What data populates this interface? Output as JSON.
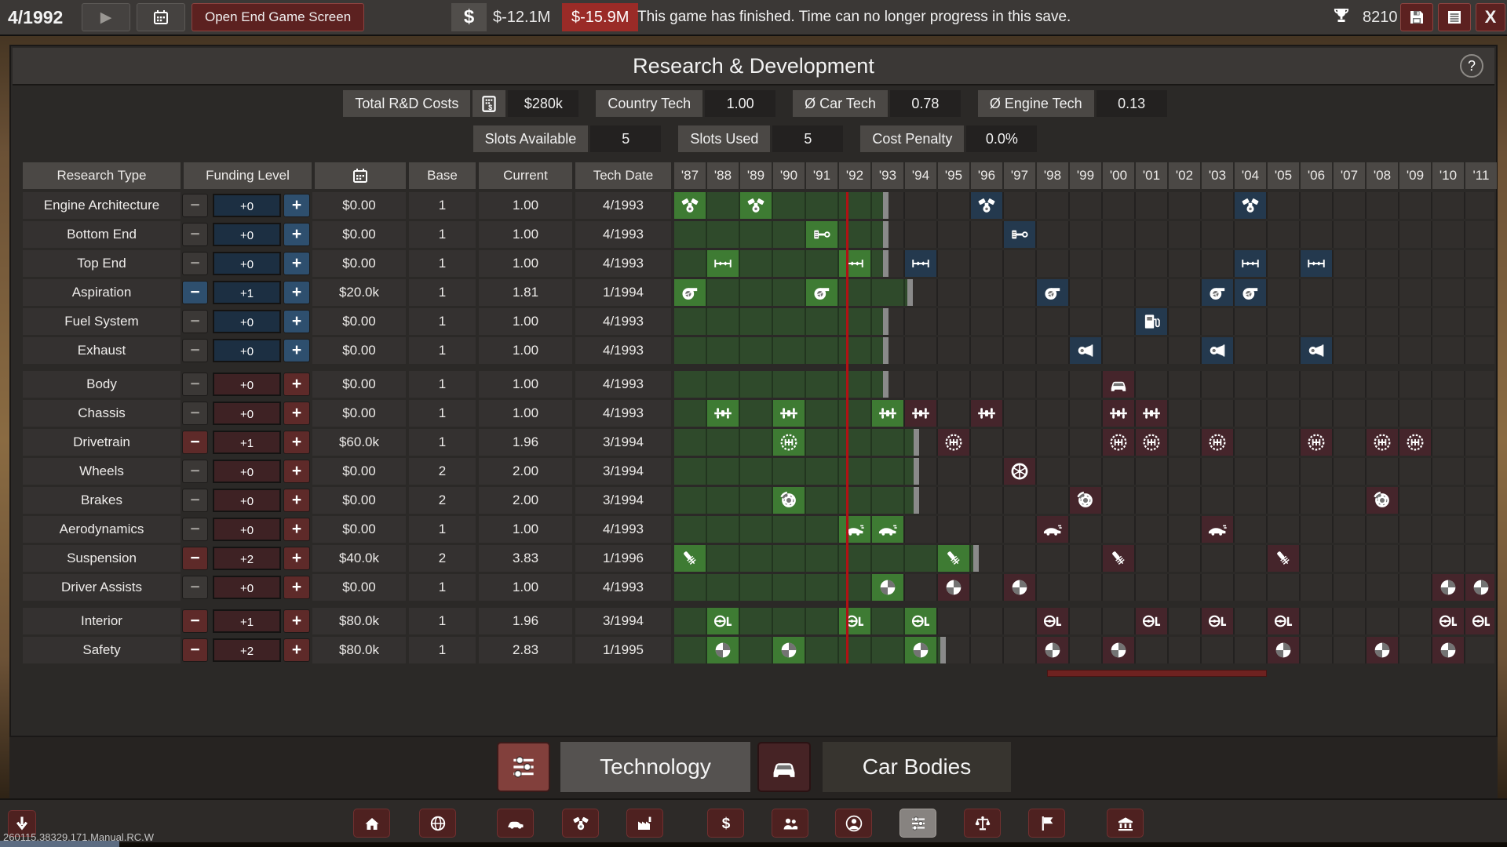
{
  "topbar": {
    "date": "4/1992",
    "open_end_label": "Open End Game Screen",
    "currency_symbol": "$",
    "cash": "$-12.1M",
    "cash_delta": "$-15.9M",
    "message": "This game has finished. Time can no longer progress in this save.",
    "score": "8210"
  },
  "panel": {
    "title": "Research & Development",
    "help_label": "?"
  },
  "stats_row1": [
    {
      "label": "Total R&D Costs",
      "icon": "calc",
      "value": "$280k"
    },
    {
      "label": "Country Tech",
      "value": "1.00"
    },
    {
      "label": "Ø Car Tech",
      "value": "0.78"
    },
    {
      "label": "Ø Engine Tech",
      "value": "0.13"
    }
  ],
  "stats_row2": [
    {
      "label": "Slots Available",
      "value": "5"
    },
    {
      "label": "Slots Used",
      "value": "5"
    },
    {
      "label": "Cost Penalty",
      "value": "0.0%"
    }
  ],
  "table": {
    "col_research": "Research Type",
    "col_funding": "Funding Level",
    "col_calendar_icon": "calendar",
    "col_base": "Base",
    "col_current": "Current",
    "col_techdate": "Tech Date",
    "years": [
      "'87",
      "'88",
      "'89",
      "'90",
      "'91",
      "'92",
      "'93",
      "'94",
      "'95",
      "'96",
      "'97",
      "'98",
      "'99",
      "'00",
      "'01",
      "'02",
      "'03",
      "'04",
      "'05",
      "'06",
      "'07",
      "'08",
      "'09",
      "'10",
      "'11"
    ]
  },
  "rows": [
    {
      "name": "Engine Architecture",
      "group": "engine",
      "tech_icon": "engine",
      "funding": "+0",
      "active": false,
      "cost": "$0.00",
      "base": "1",
      "current": "1.00",
      "tech_date": "4/1993",
      "band_end": 6.33,
      "icons": [
        [
          0,
          "g"
        ],
        [
          2,
          "g"
        ],
        [
          9,
          "f"
        ],
        [
          17,
          "f"
        ]
      ]
    },
    {
      "name": "Bottom End",
      "group": "engine",
      "tech_icon": "piston",
      "funding": "+0",
      "active": false,
      "cost": "$0.00",
      "base": "1",
      "current": "1.00",
      "tech_date": "4/1993",
      "band_end": 6.33,
      "icons": [
        [
          4,
          "g"
        ],
        [
          10,
          "f"
        ]
      ]
    },
    {
      "name": "Top End",
      "group": "engine",
      "tech_icon": "camshaft",
      "funding": "+0",
      "active": false,
      "cost": "$0.00",
      "base": "1",
      "current": "1.00",
      "tech_date": "4/1993",
      "band_end": 6.33,
      "icons": [
        [
          1,
          "g"
        ],
        [
          5,
          "g"
        ],
        [
          7,
          "f"
        ],
        [
          17,
          "f"
        ],
        [
          19,
          "f"
        ]
      ]
    },
    {
      "name": "Aspiration",
      "group": "engine",
      "tech_icon": "turbo",
      "funding": "+1",
      "active": true,
      "cost": "$20.0k",
      "base": "1",
      "current": "1.81",
      "tech_date": "1/1994",
      "band_end": 7.08,
      "icons": [
        [
          0,
          "g"
        ],
        [
          4,
          "g"
        ],
        [
          11,
          "f"
        ],
        [
          16,
          "f"
        ],
        [
          17,
          "f"
        ]
      ]
    },
    {
      "name": "Fuel System",
      "group": "engine",
      "tech_icon": "fuelpump",
      "funding": "+0",
      "active": false,
      "cost": "$0.00",
      "base": "1",
      "current": "1.00",
      "tech_date": "4/1993",
      "band_end": 6.33,
      "icons": [
        [
          14,
          "f"
        ]
      ]
    },
    {
      "name": "Exhaust",
      "group": "engine",
      "tech_icon": "muffler",
      "funding": "+0",
      "active": false,
      "cost": "$0.00",
      "base": "1",
      "current": "1.00",
      "tech_date": "4/1993",
      "band_end": 6.33,
      "icons": [
        [
          12,
          "f"
        ],
        [
          16,
          "f"
        ],
        [
          19,
          "f"
        ]
      ],
      "group_end": true
    },
    {
      "name": "Body",
      "group": "car",
      "tech_icon": "carfront",
      "funding": "+0",
      "active": false,
      "cost": "$0.00",
      "base": "1",
      "current": "1.00",
      "tech_date": "4/1993",
      "band_end": 6.33,
      "icons": [
        [
          13,
          "f"
        ]
      ]
    },
    {
      "name": "Chassis",
      "group": "car",
      "tech_icon": "chassis",
      "funding": "+0",
      "active": false,
      "cost": "$0.00",
      "base": "1",
      "current": "1.00",
      "tech_date": "4/1993",
      "band_end": 6.33,
      "icons": [
        [
          1,
          "g"
        ],
        [
          3,
          "g"
        ],
        [
          6,
          "g"
        ],
        [
          7,
          "f"
        ],
        [
          9,
          "f"
        ],
        [
          13,
          "f"
        ],
        [
          14,
          "f"
        ]
      ]
    },
    {
      "name": "Drivetrain",
      "group": "car",
      "tech_icon": "gearbox",
      "funding": "+1",
      "active": true,
      "cost": "$60.0k",
      "base": "1",
      "current": "1.96",
      "tech_date": "3/1994",
      "band_end": 7.25,
      "icons": [
        [
          3,
          "g"
        ],
        [
          8,
          "f"
        ],
        [
          13,
          "f"
        ],
        [
          14,
          "f"
        ],
        [
          16,
          "f"
        ],
        [
          19,
          "f"
        ],
        [
          21,
          "f"
        ],
        [
          22,
          "f"
        ]
      ]
    },
    {
      "name": "Wheels",
      "group": "car",
      "tech_icon": "wheel",
      "funding": "+0",
      "active": false,
      "cost": "$0.00",
      "base": "2",
      "current": "2.00",
      "tech_date": "3/1994",
      "band_end": 7.25,
      "icons": [
        [
          10,
          "f"
        ]
      ]
    },
    {
      "name": "Brakes",
      "group": "car",
      "tech_icon": "brakedisc",
      "funding": "+0",
      "active": false,
      "cost": "$0.00",
      "base": "2",
      "current": "2.00",
      "tech_date": "3/1994",
      "band_end": 7.25,
      "icons": [
        [
          3,
          "g"
        ],
        [
          12,
          "f"
        ],
        [
          21,
          "f"
        ]
      ]
    },
    {
      "name": "Aerodynamics",
      "group": "car",
      "tech_icon": "aerocar",
      "funding": "+0",
      "active": false,
      "cost": "$0.00",
      "base": "1",
      "current": "1.00",
      "tech_date": "4/1993",
      "band_end": 6.33,
      "icons": [
        [
          5,
          "g"
        ],
        [
          6,
          "g"
        ],
        [
          11,
          "f"
        ],
        [
          16,
          "f"
        ]
      ]
    },
    {
      "name": "Suspension",
      "group": "car",
      "tech_icon": "shock",
      "funding": "+2",
      "active": true,
      "cost": "$40.0k",
      "base": "2",
      "current": "3.83",
      "tech_date": "1/1996",
      "band_end": 9.08,
      "icons": [
        [
          0,
          "g"
        ],
        [
          8,
          "g"
        ],
        [
          13,
          "f"
        ],
        [
          18,
          "f"
        ]
      ]
    },
    {
      "name": "Driver Assists",
      "group": "car",
      "tech_icon": "quadrant",
      "funding": "+0",
      "active": false,
      "cost": "$0.00",
      "base": "1",
      "current": "1.00",
      "tech_date": "4/1993",
      "band_end": 6.33,
      "icons": [
        [
          6,
          "g"
        ],
        [
          8,
          "f"
        ],
        [
          10,
          "f"
        ],
        [
          23,
          "f"
        ],
        [
          24,
          "f"
        ]
      ],
      "group_end": true
    },
    {
      "name": "Interior",
      "group": "car",
      "tech_icon": "steeringL",
      "funding": "+1",
      "active": true,
      "cost": "$80.0k",
      "base": "1",
      "current": "1.96",
      "tech_date": "3/1994",
      "band_end": 7.25,
      "icons": [
        [
          1,
          "g"
        ],
        [
          5,
          "g"
        ],
        [
          7,
          "g"
        ],
        [
          11,
          "f"
        ],
        [
          14,
          "f"
        ],
        [
          16,
          "f"
        ],
        [
          18,
          "f"
        ],
        [
          23,
          "f"
        ],
        [
          24,
          "f"
        ]
      ]
    },
    {
      "name": "Safety",
      "group": "car",
      "tech_icon": "quadrant",
      "funding": "+2",
      "active": true,
      "cost": "$80.0k",
      "base": "1",
      "current": "2.83",
      "tech_date": "1/1995",
      "band_end": 8.08,
      "icons": [
        [
          1,
          "g"
        ],
        [
          3,
          "g"
        ],
        [
          7,
          "g"
        ],
        [
          11,
          "f"
        ],
        [
          13,
          "f"
        ],
        [
          18,
          "f"
        ],
        [
          21,
          "f"
        ],
        [
          23,
          "f"
        ]
      ]
    }
  ],
  "tabs": [
    {
      "label": "Technology",
      "icon": "sliders",
      "active": true
    },
    {
      "label": "Car Bodies",
      "icon": "carfront",
      "active": false
    }
  ],
  "toolbar": {
    "icons": [
      "home",
      "globe",
      "carside",
      "engine",
      "factory",
      "dollar",
      "people",
      "person",
      "sliders",
      "scales",
      "flag",
      "bank"
    ],
    "active_index": 8
  },
  "version": "260115.38329.171.Manual.RC.W",
  "colors": {
    "researched_cell": "#3e7b33",
    "researched_band": "#2f4a2b",
    "engine_future_cell": "#24394e",
    "car_future_cell": "#45252b",
    "engine_funding": "#2e4f6e",
    "car_funding": "#5e2a29",
    "now_line": "#b01114",
    "accent_red_button": "#5c2120"
  }
}
